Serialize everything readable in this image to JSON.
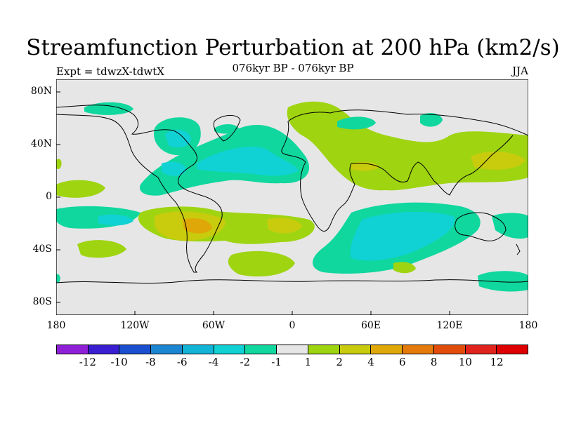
{
  "chart_data": {
    "type": "heatmap",
    "title": "Streamfunction Perturbation at 200 hPa (km2/s)",
    "subtitle": "076kyr BP - 076kyr BP",
    "left_label": "Expt = tdwzX-tdwtX",
    "right_label": "JJA",
    "x_ticks": [
      "180",
      "120W",
      "60W",
      "0",
      "60E",
      "120E",
      "180"
    ],
    "y_ticks": [
      "80N",
      "40N",
      "0",
      "40S",
      "80S"
    ],
    "xlim": [
      -180,
      180
    ],
    "ylim": [
      -90,
      90
    ],
    "colorbar": {
      "labels": [
        "-12",
        "-10",
        "-8",
        "-6",
        "-4",
        "-2",
        "-1",
        "1",
        "2",
        "4",
        "6",
        "8",
        "10",
        "12"
      ],
      "colors": [
        "#8f20d8",
        "#3a1fd2",
        "#1a4fd0",
        "#1a86d2",
        "#11b4d6",
        "#10d2d4",
        "#10d79e",
        "#e6e6e6",
        "#9fd411",
        "#c8cc0c",
        "#dfa808",
        "#e47a0b",
        "#e24d0c",
        "#e0231c",
        "#de0000"
      ]
    },
    "anomaly_regions": [
      {
        "name": "north-atlantic-negative",
        "lon": -35,
        "lat": 28,
        "level": -2
      },
      {
        "name": "south-atlantic-positive",
        "lon": -70,
        "lat": -20,
        "level": 4
      },
      {
        "name": "south-indian-negative",
        "lon": 85,
        "lat": -35,
        "level": -2
      },
      {
        "name": "north-pacific-west-positive",
        "lon": 155,
        "lat": 28,
        "level": 2
      },
      {
        "name": "eurasia-positive",
        "lon": 60,
        "lat": 30,
        "level": 2
      }
    ]
  }
}
